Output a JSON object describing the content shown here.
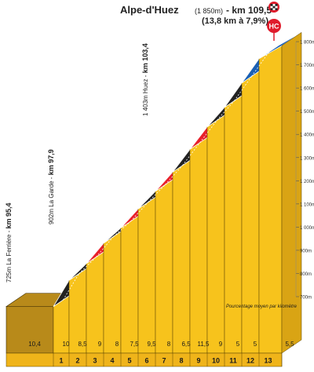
{
  "chart_data": {
    "type": "area",
    "title": "Alpe-d'Huez",
    "title_altitude": "(1 850m)",
    "title_km": "- km 109,5",
    "subtitle": "(13,8 km à 7,9%)",
    "category_badge": "HC",
    "ylabel": "",
    "xlabel": "Pourcentage moyen par kilomètre",
    "ylim": [
      640,
      1900
    ],
    "y_ticks": [
      "700m",
      "800m",
      "900m",
      "1 000m",
      "1 100m",
      "1 200m",
      "1 300m",
      "1 400m",
      "1 500m",
      "1 600m",
      "1 700m",
      "1 800m"
    ],
    "y_tick_values": [
      700,
      800,
      900,
      1000,
      1100,
      1200,
      1300,
      1400,
      1500,
      1600,
      1700,
      1800
    ],
    "categories": [
      "1",
      "2",
      "3",
      "4",
      "5",
      "6",
      "7",
      "8",
      "9",
      "10",
      "11",
      "12",
      "13"
    ],
    "gradients": [
      "10,4",
      "10",
      "8,5",
      "9",
      "8",
      "7,5",
      "9,5",
      "8",
      "6,5",
      "11,5",
      "9",
      "5",
      "5",
      "5,5"
    ],
    "profile_elevations": [
      725,
      838,
      910,
      998,
      1064,
      1146,
      1222,
      1305,
      1403,
      1500,
      1584,
      1689,
      1794,
      1850
    ],
    "segment_colors": [
      "#222222",
      "#222222",
      "#e8202a",
      "#222222",
      "#e8202a",
      "#222222",
      "#e8202a",
      "#222222",
      "#e8202a",
      "#222222",
      "#222222",
      "#1a5fb4",
      "#1a5fb4"
    ],
    "start_segment_color": "#b88a1a",
    "waypoints": [
      {
        "altitude": "725m",
        "name": "La Ferrière",
        "km": "km 95,4"
      },
      {
        "altitude": "902m",
        "name": "La Garde",
        "km": "km 97,9"
      },
      {
        "altitude": "1 403m",
        "name": "Huez",
        "km": "km 103,4"
      }
    ],
    "colors": {
      "wall": "#f7c31c",
      "base": "#efb41a",
      "grid": "#5a4300",
      "badge": "#e01b2b"
    }
  }
}
